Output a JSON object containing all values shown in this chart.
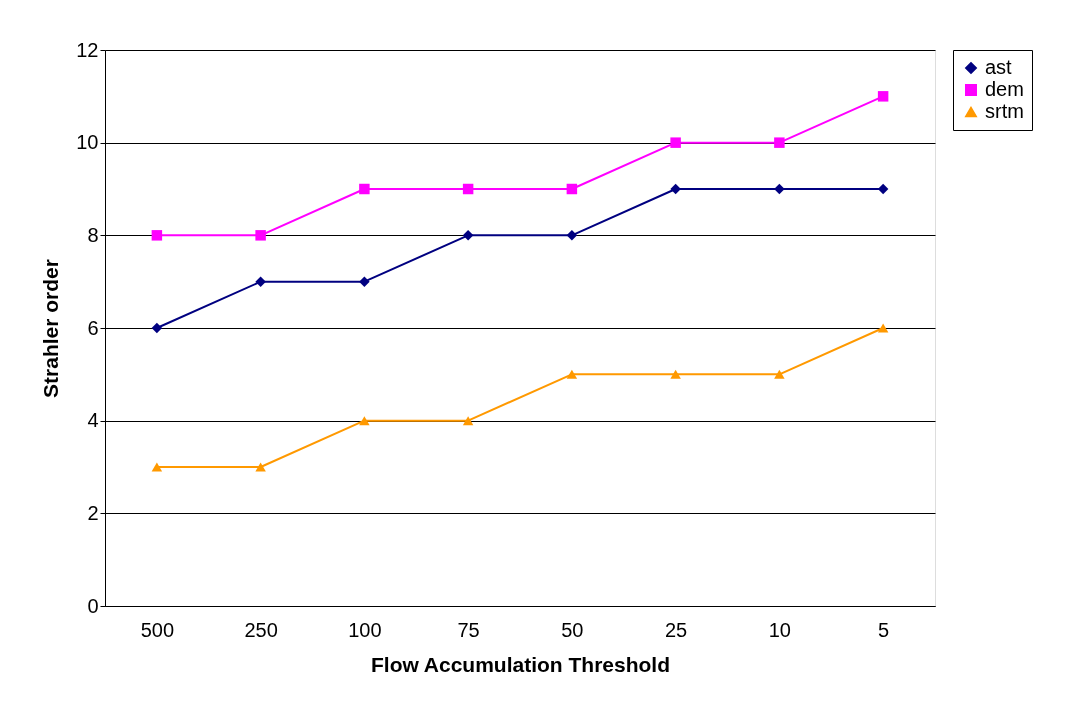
{
  "chart_data": {
    "type": "line",
    "xlabel": "Flow Accumulation Threshold",
    "ylabel": "Strahler order",
    "categories": [
      "500",
      "250",
      "100",
      "75",
      "50",
      "25",
      "10",
      "5"
    ],
    "series": [
      {
        "name": "ast",
        "color": "#000080",
        "marker": "diamond",
        "values": [
          6,
          7,
          7,
          8,
          8,
          9,
          9,
          9
        ]
      },
      {
        "name": "dem",
        "color": "#ff00ff",
        "marker": "square",
        "values": [
          8,
          8,
          9,
          9,
          9,
          10,
          10,
          11
        ]
      },
      {
        "name": "srtm",
        "color": "#ff9900",
        "marker": "triangle",
        "values": [
          3,
          3,
          4,
          4,
          5,
          5,
          5,
          6
        ]
      }
    ],
    "ylim": [
      0,
      12
    ],
    "yticks": [
      0,
      2,
      4,
      6,
      8,
      10,
      12
    ],
    "grid": "y",
    "legend": "right",
    "line_style": "solid"
  }
}
